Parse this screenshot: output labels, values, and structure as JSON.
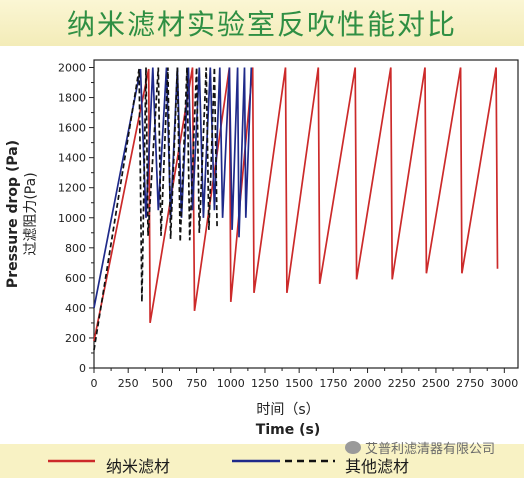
{
  "page": {
    "title": "纳米滤材实验室反吹性能对比",
    "watermark": "艾普利滤清器有限公司"
  },
  "colors": {
    "nano": "#cc2a2a",
    "other_solid": "#1f2a8a",
    "other_dashed": "#111111",
    "title": "#2f8f43"
  },
  "chart_data": {
    "type": "line",
    "xlabel_cn": "时间（s）",
    "xlabel": "Time (s)",
    "ylabel_en": "Pressure drop (Pa)",
    "ylabel_cn": "过滤阻力(Pa)",
    "xlim": [
      0,
      3100
    ],
    "ylim": [
      0,
      2050
    ],
    "xticks": [
      0,
      250,
      500,
      750,
      1000,
      1250,
      1500,
      1750,
      2000,
      2250,
      2500,
      2750,
      3000
    ],
    "yticks": [
      0,
      200,
      400,
      600,
      800,
      1000,
      1200,
      1400,
      1600,
      1800,
      2000
    ],
    "legend": {
      "placement": "bottom",
      "entries": [
        "纳米滤材",
        "其他滤材"
      ]
    },
    "series": [
      {
        "name": "纳米滤材",
        "style": "solid",
        "color": "#cc2a2a",
        "points": [
          [
            0,
            180
          ],
          [
            400,
            1990
          ],
          [
            410,
            300
          ],
          [
            720,
            2000
          ],
          [
            735,
            380
          ],
          [
            990,
            2000
          ],
          [
            1000,
            440
          ],
          [
            1160,
            2000
          ],
          [
            1170,
            500
          ],
          [
            1400,
            2000
          ],
          [
            1410,
            500
          ],
          [
            1640,
            2000
          ],
          [
            1650,
            560
          ],
          [
            1910,
            2000
          ],
          [
            1920,
            590
          ],
          [
            2170,
            2000
          ],
          [
            2180,
            590
          ],
          [
            2420,
            2000
          ],
          [
            2430,
            630
          ],
          [
            2680,
            2000
          ],
          [
            2690,
            630
          ],
          [
            2940,
            2000
          ],
          [
            2950,
            660
          ]
        ]
      },
      {
        "name": "其他滤材",
        "style": "solid",
        "color": "#1f2a8a",
        "points": [
          [
            0,
            400
          ],
          [
            340,
            1990
          ],
          [
            380,
            1000
          ],
          [
            430,
            2000
          ],
          [
            470,
            1050
          ],
          [
            530,
            2000
          ],
          [
            560,
            1000
          ],
          [
            610,
            2000
          ],
          [
            640,
            1000
          ],
          [
            690,
            2000
          ],
          [
            720,
            1050
          ],
          [
            770,
            2000
          ],
          [
            800,
            1000
          ],
          [
            850,
            2000
          ],
          [
            880,
            1050
          ],
          [
            920,
            2000
          ],
          [
            940,
            1000
          ],
          [
            990,
            2000
          ],
          [
            1010,
            920
          ],
          [
            1050,
            2000
          ],
          [
            1060,
            870
          ],
          [
            1100,
            2000
          ],
          [
            1110,
            1000
          ],
          [
            1150,
            2000
          ]
        ]
      },
      {
        "name": "其他滤材",
        "style": "dashed",
        "color": "#111111",
        "points": [
          [
            0,
            120
          ],
          [
            330,
            1990
          ],
          [
            350,
            440
          ],
          [
            380,
            2000
          ],
          [
            395,
            880
          ],
          [
            470,
            2000
          ],
          [
            490,
            880
          ],
          [
            540,
            2000
          ],
          [
            560,
            860
          ],
          [
            610,
            2000
          ],
          [
            630,
            840
          ],
          [
            680,
            2000
          ],
          [
            700,
            850
          ],
          [
            750,
            2000
          ],
          [
            770,
            900
          ],
          [
            820,
            2000
          ],
          [
            840,
            920
          ],
          [
            880,
            2000
          ],
          [
            900,
            930
          ]
        ]
      }
    ]
  }
}
